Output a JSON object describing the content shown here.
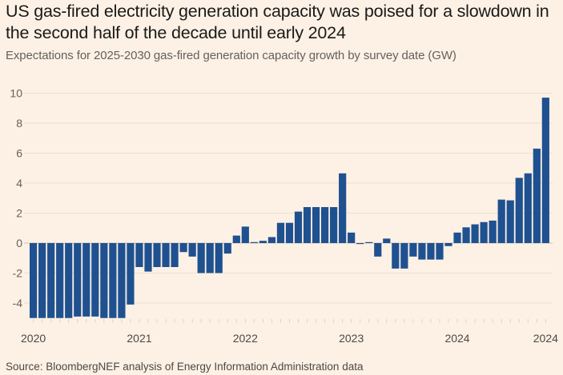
{
  "chart_data": {
    "type": "bar",
    "title": "US gas-fired electricity generation capacity was poised for a slowdown in the second half of the decade until early 2024",
    "subtitle": "Expectations for 2025-2030 gas-fired generation capacity growth by survey date (GW)",
    "source": "Source: BloombergNEF analysis of Energy Information Administration data",
    "xlabel": "",
    "ylabel": "GW",
    "ylim": [
      -5.2,
      10
    ],
    "yticks": [
      10,
      8,
      6,
      4,
      2,
      0,
      -2,
      -4
    ],
    "xtick_labels": [
      "2020",
      "2021",
      "2022",
      "2023",
      "2024",
      "2024"
    ],
    "xtick_positions_bar_index": [
      0,
      12,
      24,
      36,
      48,
      58
    ],
    "grid": true,
    "bar_color": "#1f5190",
    "values": [
      -5.0,
      -5.0,
      -5.0,
      -5.0,
      -5.0,
      -4.9,
      -4.9,
      -4.9,
      -5.0,
      -5.0,
      -5.0,
      -4.1,
      -1.6,
      -1.9,
      -1.6,
      -1.6,
      -1.6,
      -0.6,
      -0.9,
      -2.0,
      -2.0,
      -2.0,
      -0.7,
      0.5,
      1.1,
      0.05,
      0.15,
      0.4,
      1.35,
      1.35,
      2.1,
      2.4,
      2.4,
      2.4,
      2.4,
      4.65,
      0.7,
      -0.05,
      0.05,
      -0.9,
      0.3,
      -1.7,
      -1.7,
      -0.9,
      -1.1,
      -1.1,
      -1.1,
      -0.2,
      0.7,
      1.05,
      1.25,
      1.4,
      1.5,
      2.9,
      2.85,
      4.35,
      4.65,
      6.3,
      9.7
    ]
  }
}
